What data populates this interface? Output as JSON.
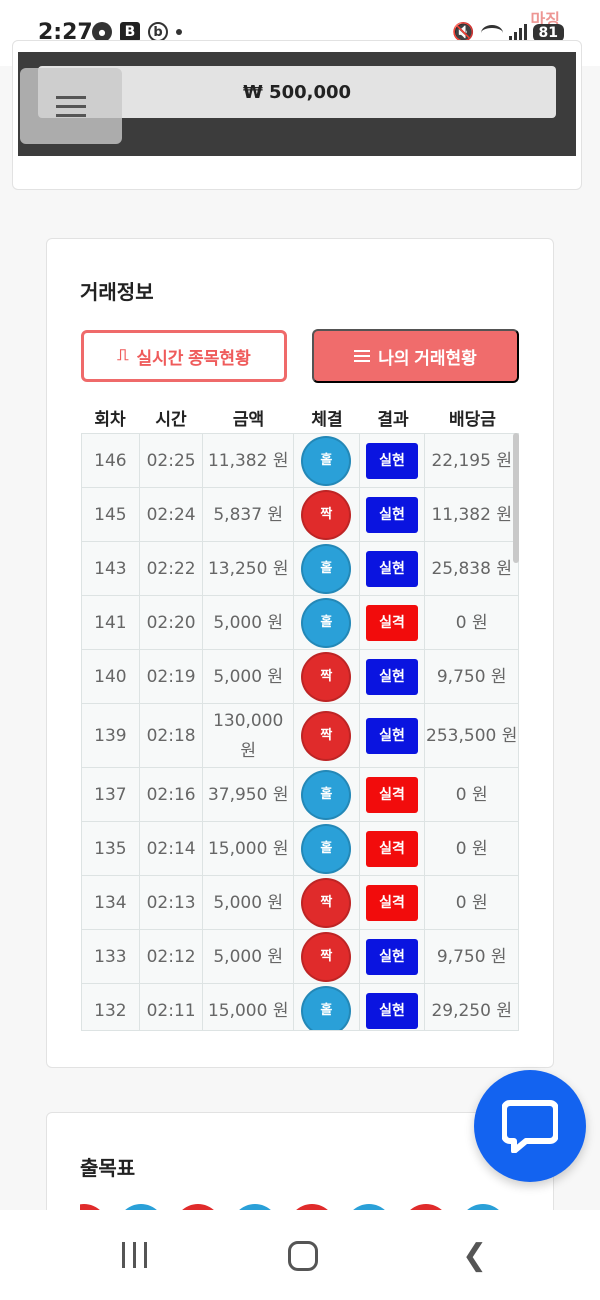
{
  "status_bar": {
    "time": "2:27",
    "battery": "81",
    "watermark": "마징"
  },
  "top": {
    "amount": "₩ 500,000"
  },
  "trade": {
    "title": "거래정보",
    "btn_live": "실시간 종목현황",
    "btn_mine": "나의 거래현황",
    "headers": [
      "회차",
      "시간",
      "금액",
      "체결",
      "결과",
      "배당금"
    ],
    "rows": [
      {
        "round": "146",
        "time": "02:25",
        "amount": "11,382 원",
        "pick": "홀",
        "pick_type": "odd",
        "result": "실현",
        "result_type": "win",
        "payout": "22,195 원"
      },
      {
        "round": "145",
        "time": "02:24",
        "amount": "5,837 원",
        "pick": "짝",
        "pick_type": "even",
        "result": "실현",
        "result_type": "win",
        "payout": "11,382 원"
      },
      {
        "round": "143",
        "time": "02:22",
        "amount": "13,250 원",
        "pick": "홀",
        "pick_type": "odd",
        "result": "실현",
        "result_type": "win",
        "payout": "25,838 원"
      },
      {
        "round": "141",
        "time": "02:20",
        "amount": "5,000 원",
        "pick": "홀",
        "pick_type": "odd",
        "result": "실격",
        "result_type": "lose",
        "payout": "0 원"
      },
      {
        "round": "140",
        "time": "02:19",
        "amount": "5,000 원",
        "pick": "짝",
        "pick_type": "even",
        "result": "실현",
        "result_type": "win",
        "payout": "9,750 원"
      },
      {
        "round": "139",
        "time": "02:18",
        "amount": "130,000 원",
        "pick": "짝",
        "pick_type": "even",
        "result": "실현",
        "result_type": "win",
        "payout": "253,500 원"
      },
      {
        "round": "137",
        "time": "02:16",
        "amount": "37,950 원",
        "pick": "홀",
        "pick_type": "odd",
        "result": "실격",
        "result_type": "lose",
        "payout": "0 원"
      },
      {
        "round": "135",
        "time": "02:14",
        "amount": "15,000 원",
        "pick": "홀",
        "pick_type": "odd",
        "result": "실격",
        "result_type": "lose",
        "payout": "0 원"
      },
      {
        "round": "134",
        "time": "02:13",
        "amount": "5,000 원",
        "pick": "짝",
        "pick_type": "even",
        "result": "실격",
        "result_type": "lose",
        "payout": "0 원"
      },
      {
        "round": "133",
        "time": "02:12",
        "amount": "5,000 원",
        "pick": "짝",
        "pick_type": "even",
        "result": "실현",
        "result_type": "win",
        "payout": "9,750 원"
      },
      {
        "round": "132",
        "time": "02:11",
        "amount": "15,000 원",
        "pick": "홀",
        "pick_type": "odd",
        "result": "실현",
        "result_type": "win",
        "payout": "29,250 원"
      }
    ]
  },
  "outcome": {
    "title": "출목표",
    "balls": [
      "even",
      "odd",
      "even",
      "odd",
      "even",
      "odd",
      "even",
      "odd"
    ]
  },
  "colors": {
    "odd": "#2aa0d8",
    "even": "#e02b2b",
    "win": "#0a14e0",
    "lose": "#f20c0c",
    "accent": "#f06c6c",
    "fab": "#1363f0"
  },
  "icons": [
    "message-icon",
    "talk-icon",
    "band-icon",
    "b-icon",
    "mute-icon",
    "wifi-icon",
    "signal-icon",
    "battery-icon",
    "menu-icon",
    "pulse-icon",
    "lines-icon",
    "chat-icon",
    "recent-apps-icon",
    "home-icon",
    "back-icon"
  ]
}
